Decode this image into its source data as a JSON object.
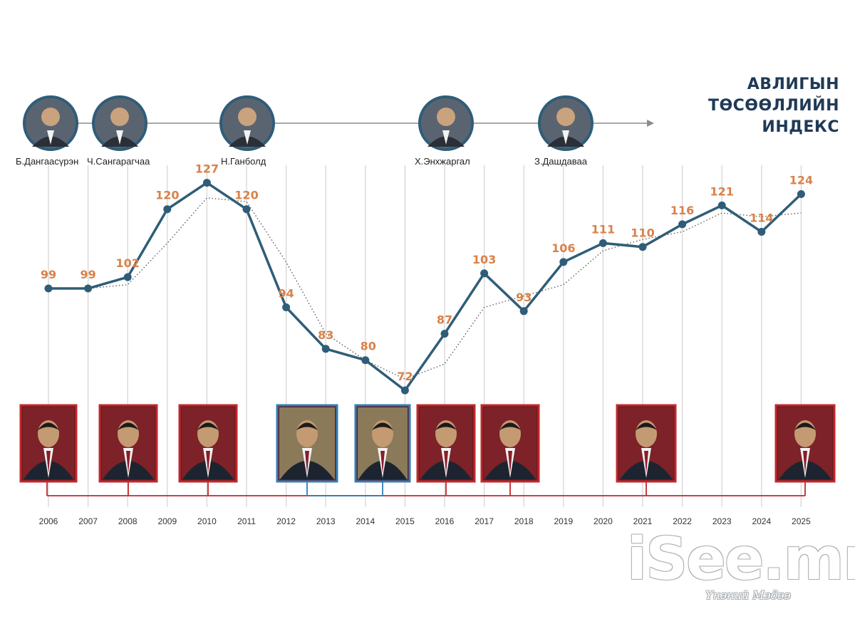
{
  "title_lines": [
    "АВЛИГЫН",
    "ТӨСӨӨЛЛИЙН",
    "ИНДЕКС"
  ],
  "colors": {
    "line": "#2f5d78",
    "label": "#d9824a",
    "title": "#1f3a56",
    "red": "#c0282d",
    "blue": "#2f7fb8",
    "grid": "#d3d3d3"
  },
  "chart_data": {
    "type": "line",
    "title": "АВЛИГЫН ТӨСӨӨЛЛИЙН ИНДЕКС",
    "xlabel": "",
    "ylabel": "",
    "categories": [
      "2006",
      "2007",
      "2008",
      "2009",
      "2010",
      "2011",
      "2012",
      "2013",
      "2014",
      "2015",
      "2016",
      "2017",
      "2018",
      "2019",
      "2020",
      "2021",
      "2022",
      "2023",
      "2024",
      "2025"
    ],
    "series": [
      {
        "name": "index",
        "style": "solid",
        "values": [
          99,
          99,
          102,
          120,
          127,
          120,
          94,
          83,
          80,
          72,
          87,
          103,
          93,
          106,
          111,
          110,
          116,
          121,
          114,
          124
        ]
      },
      {
        "name": "trend",
        "style": "dotted",
        "values": [
          99,
          99,
          100,
          111,
          123,
          122,
          106,
          87,
          80,
          75,
          79,
          94,
          97,
          100,
          109,
          112,
          114,
          119,
          118,
          119
        ]
      }
    ],
    "ylim": [
      60,
      135
    ]
  },
  "top_people": [
    {
      "name": "Б.Дангаасүрэн"
    },
    {
      "name": "Ч.Сангарагчаа"
    },
    {
      "name": "Н.Ганболд"
    },
    {
      "name": "Х.Энхжаргал"
    },
    {
      "name": "З.Дашдаваа"
    }
  ],
  "bottom_people": [
    {
      "frame": "red"
    },
    {
      "frame": "red"
    },
    {
      "frame": "red"
    },
    {
      "frame": "blue"
    },
    {
      "frame": "blue"
    },
    {
      "frame": "red"
    },
    {
      "frame": "red"
    },
    {
      "frame": "red"
    },
    {
      "frame": "red"
    }
  ],
  "watermark": {
    "main": "iSee.mn",
    "tagline": "Үнэний Мэдээ"
  }
}
